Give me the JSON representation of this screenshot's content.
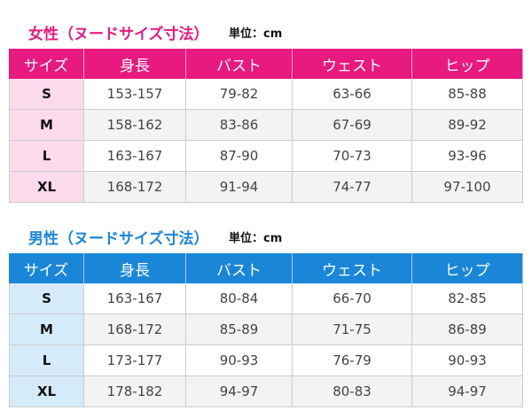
{
  "sections": [
    {
      "title": "女性（ヌードサイズ寸法）",
      "unit": "単位：cm",
      "headers": [
        "サイズ",
        "身長",
        "バスト",
        "ウェスト",
        "ヒップ"
      ],
      "rows": [
        [
          "S",
          "153-157",
          "79-82",
          "63-66",
          "85-88"
        ],
        [
          "M",
          "158-162",
          "83-86",
          "67-69",
          "89-92"
        ],
        [
          "L",
          "163-167",
          "87-90",
          "70-73",
          "93-96"
        ],
        [
          "XL",
          "168-172",
          "91-94",
          "74-77",
          "97-100"
        ]
      ]
    },
    {
      "title": "男性（ヌードサイズ寸法）",
      "unit": "単位：cm",
      "headers": [
        "サイズ",
        "身長",
        "バスト",
        "ウェスト",
        "ヒップ"
      ],
      "rows": [
        [
          "S",
          "163-167",
          "80-84",
          "66-70",
          "82-85"
        ],
        [
          "M",
          "168-172",
          "85-89",
          "71-75",
          "86-89"
        ],
        [
          "L",
          "173-177",
          "90-93",
          "76-79",
          "90-93"
        ],
        [
          "XL",
          "178-182",
          "94-97",
          "80-83",
          "94-97"
        ]
      ]
    }
  ]
}
